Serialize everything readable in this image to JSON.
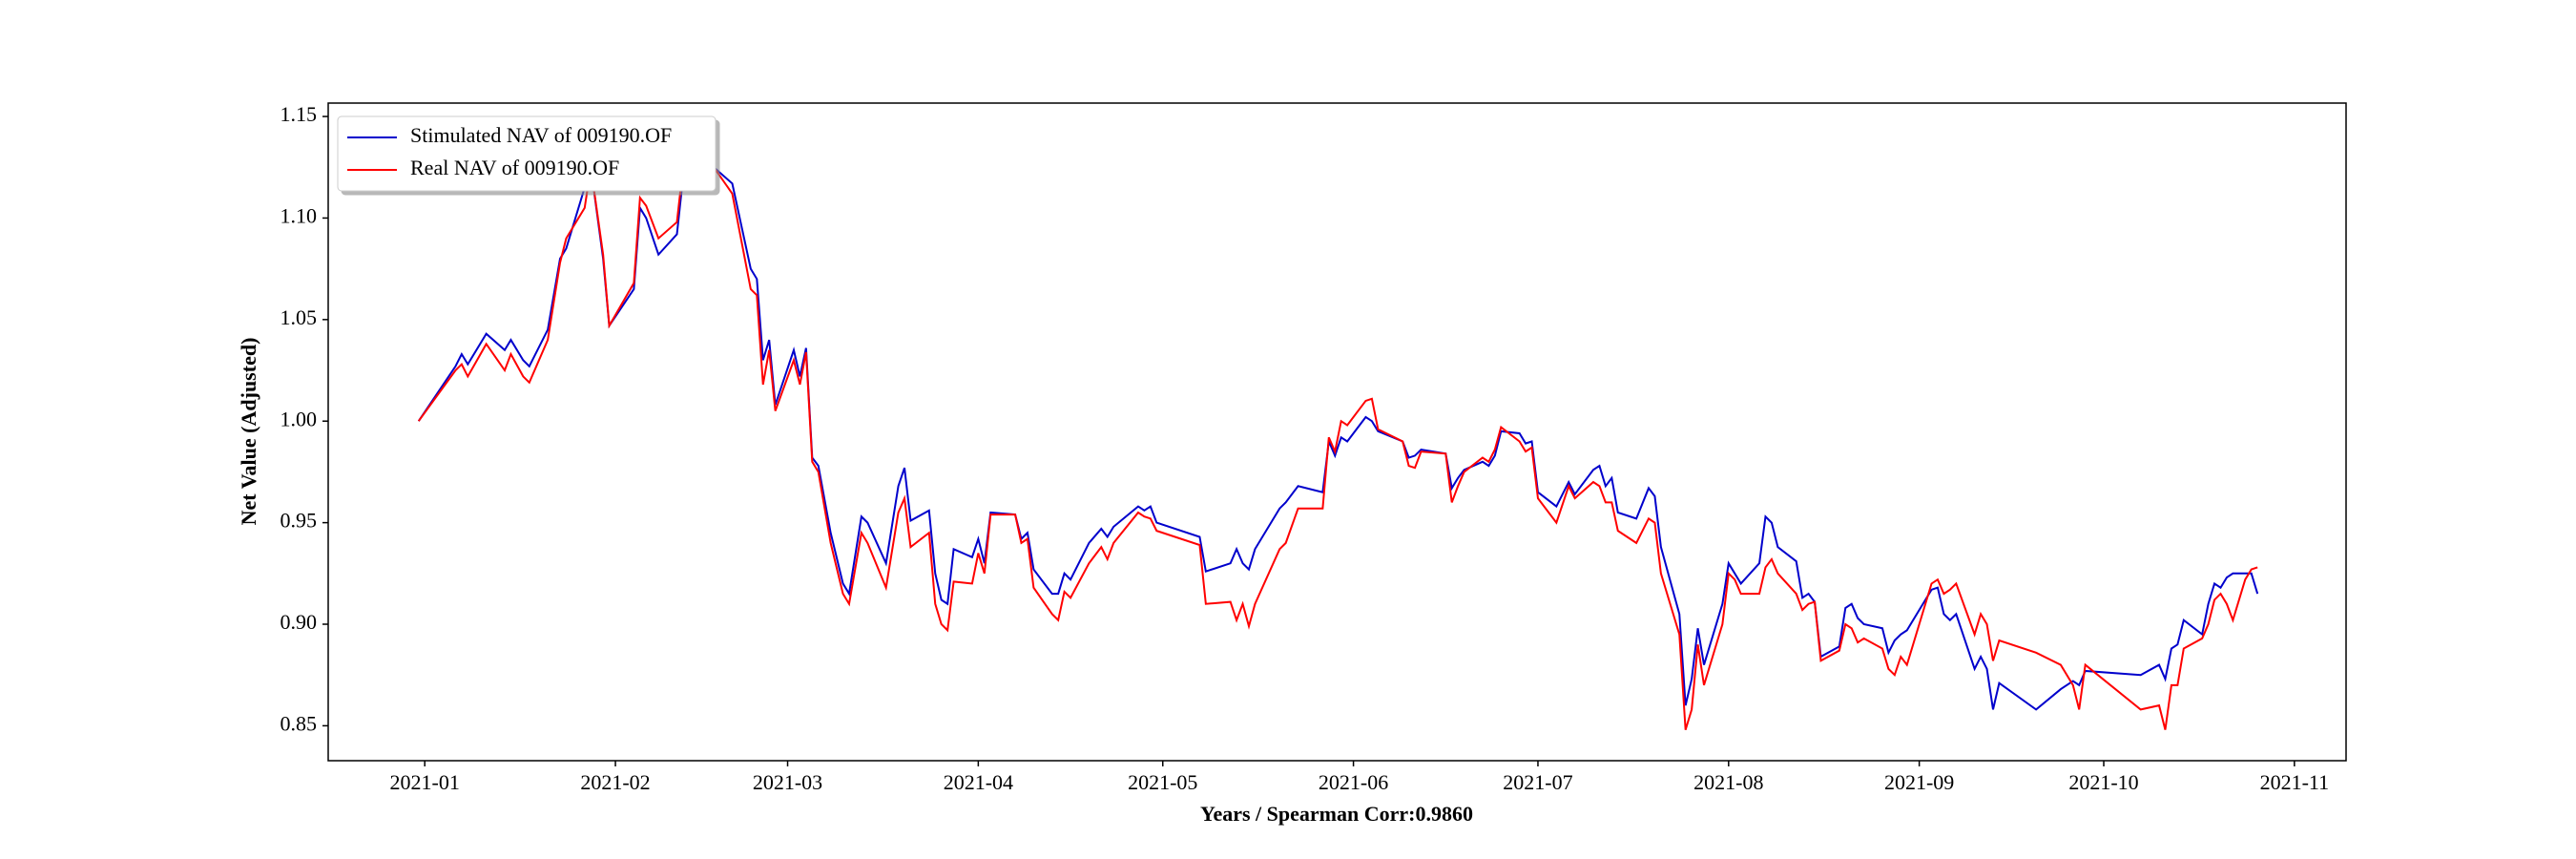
{
  "chart_data": {
    "type": "line",
    "xlabel": "Years / Spearman Corr:0.9860",
    "ylabel": "Net Value (Adjusted)",
    "legend": "upper left",
    "x": [
      -1,
      5,
      6,
      7,
      10,
      13,
      14,
      16,
      17,
      20,
      22,
      23,
      26,
      27,
      29,
      30,
      34,
      35,
      36,
      38,
      41,
      42,
      47,
      50,
      53,
      54,
      55,
      56,
      57,
      60,
      61,
      62,
      63,
      64,
      66,
      68,
      69,
      71,
      72,
      75,
      77,
      78,
      79,
      82,
      83,
      84,
      85,
      86,
      89,
      90,
      91,
      92,
      96,
      97,
      98,
      99,
      102,
      103,
      104,
      105,
      108,
      110,
      111,
      112,
      116,
      117,
      118,
      119,
      126,
      127,
      131,
      132,
      133,
      134,
      135,
      139,
      140,
      142,
      146,
      147,
      148,
      149,
      150,
      153,
      154,
      155,
      159,
      160,
      161,
      162,
      166,
      167,
      168,
      169,
      172,
      173,
      174,
      175,
      178,
      179,
      180,
      181,
      184,
      186,
      187,
      190,
      191,
      192,
      193,
      194,
      197,
      199,
      200,
      201,
      204,
      205,
      206,
      207,
      208,
      211,
      212,
      213,
      214,
      217,
      218,
      219,
      220,
      223,
      224,
      225,
      226,
      227,
      230,
      231,
      232,
      233,
      234,
      237,
      238,
      239,
      240,
      241,
      245,
      246,
      247,
      248,
      249,
      252,
      253,
      254,
      255,
      256,
      262,
      266,
      268,
      269,
      270,
      279,
      282,
      283,
      284,
      285,
      286,
      289,
      290,
      291,
      292,
      293,
      294,
      296,
      297,
      298
    ],
    "series": [
      {
        "name": "Stimulated NAV of 009190.OF",
        "color": "#0000cc",
        "values": [
          1.0,
          1.027,
          1.033,
          1.028,
          1.043,
          1.035,
          1.04,
          1.03,
          1.027,
          1.045,
          1.08,
          1.085,
          1.115,
          1.125,
          1.08,
          1.047,
          1.065,
          1.105,
          1.1,
          1.082,
          1.092,
          1.12,
          1.125,
          1.117,
          1.075,
          1.07,
          1.03,
          1.04,
          1.008,
          1.035,
          1.022,
          1.036,
          0.982,
          0.978,
          0.945,
          0.92,
          0.915,
          0.953,
          0.95,
          0.93,
          0.968,
          0.977,
          0.951,
          0.956,
          0.925,
          0.912,
          0.91,
          0.937,
          0.933,
          0.942,
          0.93,
          0.955,
          0.954,
          0.942,
          0.945,
          0.927,
          0.915,
          0.915,
          0.925,
          0.922,
          0.94,
          0.947,
          0.943,
          0.948,
          0.958,
          0.956,
          0.958,
          0.95,
          0.943,
          0.926,
          0.93,
          0.937,
          0.93,
          0.927,
          0.937,
          0.957,
          0.96,
          0.968,
          0.965,
          0.99,
          0.983,
          0.992,
          0.99,
          1.002,
          1.0,
          0.995,
          0.99,
          0.982,
          0.983,
          0.986,
          0.984,
          0.967,
          0.972,
          0.976,
          0.98,
          0.978,
          0.983,
          0.995,
          0.994,
          0.989,
          0.99,
          0.965,
          0.958,
          0.97,
          0.964,
          0.976,
          0.978,
          0.968,
          0.972,
          0.955,
          0.952,
          0.967,
          0.963,
          0.938,
          0.905,
          0.86,
          0.873,
          0.898,
          0.88,
          0.91,
          0.93,
          0.925,
          0.92,
          0.93,
          0.953,
          0.95,
          0.938,
          0.931,
          0.913,
          0.915,
          0.911,
          0.884,
          0.889,
          0.908,
          0.91,
          0.903,
          0.9,
          0.898,
          0.886,
          0.892,
          0.895,
          0.897,
          0.917,
          0.918,
          0.905,
          0.902,
          0.905,
          0.878,
          0.884,
          0.878,
          0.858,
          0.871,
          0.858,
          0.868,
          0.872,
          0.87,
          0.877,
          0.875,
          0.88,
          0.873,
          0.888,
          0.89,
          0.902,
          0.895,
          0.91,
          0.92,
          0.918,
          0.923,
          0.925,
          0.925,
          0.925,
          0.915
        ]
      },
      {
        "name": "Real NAV of 009190.OF",
        "color": "#ff0000",
        "values": [
          1.0,
          1.025,
          1.028,
          1.022,
          1.038,
          1.025,
          1.033,
          1.022,
          1.019,
          1.04,
          1.078,
          1.09,
          1.105,
          1.125,
          1.082,
          1.047,
          1.068,
          1.11,
          1.106,
          1.09,
          1.098,
          1.125,
          1.125,
          1.112,
          1.065,
          1.062,
          1.018,
          1.035,
          1.005,
          1.03,
          1.018,
          1.034,
          0.98,
          0.975,
          0.94,
          0.915,
          0.91,
          0.945,
          0.94,
          0.918,
          0.955,
          0.962,
          0.938,
          0.945,
          0.91,
          0.9,
          0.897,
          0.921,
          0.92,
          0.935,
          0.925,
          0.954,
          0.954,
          0.94,
          0.942,
          0.918,
          0.905,
          0.902,
          0.916,
          0.913,
          0.93,
          0.938,
          0.932,
          0.94,
          0.955,
          0.953,
          0.952,
          0.946,
          0.939,
          0.91,
          0.911,
          0.902,
          0.91,
          0.899,
          0.91,
          0.937,
          0.94,
          0.957,
          0.957,
          0.992,
          0.985,
          1.0,
          0.998,
          1.01,
          1.011,
          0.996,
          0.99,
          0.978,
          0.977,
          0.985,
          0.984,
          0.96,
          0.968,
          0.975,
          0.982,
          0.98,
          0.986,
          0.997,
          0.99,
          0.985,
          0.987,
          0.962,
          0.95,
          0.968,
          0.962,
          0.97,
          0.968,
          0.96,
          0.96,
          0.946,
          0.94,
          0.952,
          0.95,
          0.925,
          0.895,
          0.848,
          0.858,
          0.89,
          0.87,
          0.9,
          0.925,
          0.922,
          0.915,
          0.915,
          0.928,
          0.932,
          0.925,
          0.915,
          0.907,
          0.91,
          0.911,
          0.882,
          0.887,
          0.9,
          0.898,
          0.891,
          0.893,
          0.888,
          0.878,
          0.875,
          0.884,
          0.88,
          0.92,
          0.922,
          0.915,
          0.917,
          0.92,
          0.895,
          0.905,
          0.9,
          0.882,
          0.892,
          0.886,
          0.88,
          0.87,
          0.858,
          0.88,
          0.858,
          0.86,
          0.848,
          0.87,
          0.87,
          0.888,
          0.893,
          0.9,
          0.912,
          0.915,
          0.91,
          0.902,
          0.922,
          0.927,
          0.928
        ]
      }
    ],
    "xlim": [
      -15.7,
      312.4
    ],
    "xticks": [
      {
        "value": 0,
        "label": "2021-01"
      },
      {
        "value": 31,
        "label": "2021-02"
      },
      {
        "value": 59,
        "label": "2021-03"
      },
      {
        "value": 90,
        "label": "2021-04"
      },
      {
        "value": 120,
        "label": "2021-05"
      },
      {
        "value": 151,
        "label": "2021-06"
      },
      {
        "value": 181,
        "label": "2021-07"
      },
      {
        "value": 212,
        "label": "2021-08"
      },
      {
        "value": 243,
        "label": "2021-09"
      },
      {
        "value": 273,
        "label": "2021-10"
      },
      {
        "value": 304,
        "label": "2021-11"
      }
    ],
    "ylim": [
      0.8328,
      1.1566
    ],
    "yticks": [
      0.85,
      {
        "value": 0.9,
        "label": "0.90"
      },
      0.95,
      {
        "value": 1.0,
        "label": "1.00"
      },
      1.05,
      {
        "value": 1.1,
        "label": "1.10"
      },
      1.15
    ]
  }
}
